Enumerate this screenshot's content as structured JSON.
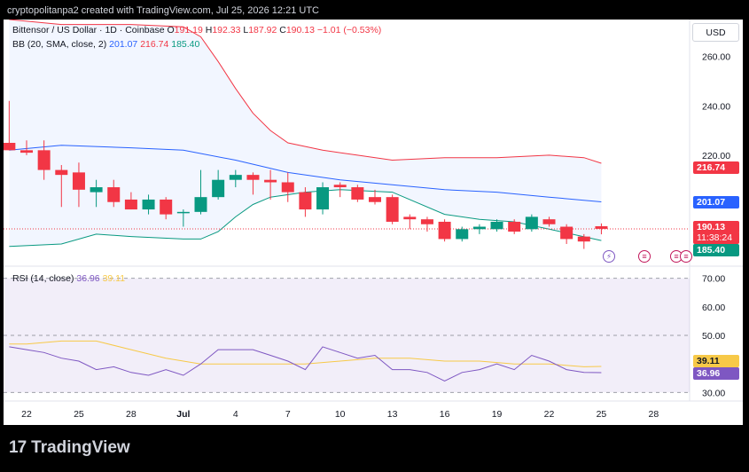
{
  "credit": "cryptopolitanpa2 created with TradingView.com, Jul 25, 2026 12:21 UTC",
  "footer": {
    "logo_mark": "17",
    "brand": "TradingView"
  },
  "header": {
    "symbol": "Bittensor / US Dollar · 1D · Coinbase",
    "o_label": "O",
    "o_value": "191.19",
    "h_label": "H",
    "h_value": "192.33",
    "l_label": "L",
    "l_value": "187.92",
    "c_label": "C",
    "c_value": "190.13",
    "change": "−1.01 (−0.53%)",
    "currency": "USD"
  },
  "bb_legend": {
    "label": "BB (20, SMA, close, 2)",
    "basis": "201.07",
    "upper": "216.74",
    "lower": "185.40"
  },
  "rsi_legend": {
    "label": "RSI (14, close)",
    "rsi": "36.96",
    "ma": "39.11"
  },
  "badges": {
    "upper": "216.74",
    "basis": "201.07",
    "price": "190.13",
    "countdown": "11:38:24",
    "lower": "185.40",
    "rsi_ma": "39.11",
    "rsi": "36.96"
  },
  "colors": {
    "up": "#089981",
    "down": "#f23645",
    "bb_basis": "#2962ff",
    "bb_upper": "#f23645",
    "bb_lower": "#089981",
    "rsi": "#7e57c2",
    "rsi_ma": "#f7c948"
  },
  "event_icons": [
    "lightning-icon",
    "us-flag-icon",
    "us-flag-icon",
    "us-flag-icon"
  ],
  "chart_data": [
    {
      "type": "candlestick",
      "y_axis_ticks": [
        "260.00",
        "240.00",
        "220.00"
      ],
      "ylim": [
        175,
        275
      ],
      "x_tick_labels": [
        "22",
        "25",
        "28",
        "Jul",
        "4",
        "7",
        "10",
        "13",
        "16",
        "19",
        "22",
        "25",
        "28"
      ],
      "x_ticks_day_index": [
        0,
        3,
        6,
        9,
        12,
        15,
        18,
        21,
        24,
        27,
        30,
        33,
        36
      ],
      "candles": [
        {
          "d": -1,
          "o": 225,
          "h": 242,
          "l": 222,
          "c": 222
        },
        {
          "d": 0,
          "o": 222,
          "h": 226,
          "l": 220,
          "c": 221
        },
        {
          "d": 1,
          "o": 222,
          "h": 226,
          "l": 210,
          "c": 214
        },
        {
          "d": 2,
          "o": 214,
          "h": 216,
          "l": 199,
          "c": 212
        },
        {
          "d": 3,
          "o": 213,
          "h": 217,
          "l": 199,
          "c": 206
        },
        {
          "d": 4,
          "o": 205,
          "h": 210,
          "l": 199,
          "c": 207
        },
        {
          "d": 5,
          "o": 207,
          "h": 210,
          "l": 199,
          "c": 201
        },
        {
          "d": 6,
          "o": 202,
          "h": 205,
          "l": 198,
          "c": 198
        },
        {
          "d": 7,
          "o": 198,
          "h": 204,
          "l": 196,
          "c": 202
        },
        {
          "d": 8,
          "o": 202,
          "h": 203,
          "l": 194,
          "c": 196
        },
        {
          "d": 9,
          "o": 197,
          "h": 198,
          "l": 191,
          "c": 197
        },
        {
          "d": 10,
          "o": 197,
          "h": 214,
          "l": 196,
          "c": 203
        },
        {
          "d": 11,
          "o": 203,
          "h": 214,
          "l": 202,
          "c": 210
        },
        {
          "d": 12,
          "o": 210,
          "h": 214,
          "l": 207,
          "c": 212
        },
        {
          "d": 13,
          "o": 212,
          "h": 213,
          "l": 204,
          "c": 210
        },
        {
          "d": 14,
          "o": 210,
          "h": 214,
          "l": 202,
          "c": 209
        },
        {
          "d": 15,
          "o": 209,
          "h": 213,
          "l": 201,
          "c": 205
        },
        {
          "d": 16,
          "o": 205,
          "h": 207,
          "l": 195,
          "c": 198
        },
        {
          "d": 17,
          "o": 198,
          "h": 209,
          "l": 196,
          "c": 207
        },
        {
          "d": 18,
          "o": 208,
          "h": 209,
          "l": 203,
          "c": 207
        },
        {
          "d": 19,
          "o": 207,
          "h": 208,
          "l": 201,
          "c": 202
        },
        {
          "d": 20,
          "o": 203,
          "h": 206,
          "l": 200,
          "c": 201
        },
        {
          "d": 21,
          "o": 203,
          "h": 204,
          "l": 192,
          "c": 193
        },
        {
          "d": 22,
          "o": 195,
          "h": 196,
          "l": 190,
          "c": 194
        },
        {
          "d": 23,
          "o": 194,
          "h": 195,
          "l": 189,
          "c": 192
        },
        {
          "d": 24,
          "o": 193,
          "h": 194,
          "l": 185,
          "c": 186
        },
        {
          "d": 25,
          "o": 186,
          "h": 191,
          "l": 185,
          "c": 190
        },
        {
          "d": 26,
          "o": 190,
          "h": 192,
          "l": 188,
          "c": 191
        },
        {
          "d": 27,
          "o": 190,
          "h": 194,
          "l": 189,
          "c": 193
        },
        {
          "d": 28,
          "o": 193,
          "h": 194,
          "l": 188,
          "c": 189
        },
        {
          "d": 29,
          "o": 190,
          "h": 196,
          "l": 189,
          "c": 195
        },
        {
          "d": 30,
          "o": 194,
          "h": 195,
          "l": 191,
          "c": 192
        },
        {
          "d": 31,
          "o": 191,
          "h": 192,
          "l": 184,
          "c": 186
        },
        {
          "d": 32,
          "o": 187,
          "h": 188,
          "l": 182,
          "c": 185
        },
        {
          "d": 33,
          "o": 191.19,
          "h": 192.33,
          "l": 187.92,
          "c": 190.13
        }
      ],
      "bb_basis": [
        [
          -1,
          222
        ],
        [
          2,
          224
        ],
        [
          6,
          223
        ],
        [
          9,
          222
        ],
        [
          12,
          218
        ],
        [
          15,
          213
        ],
        [
          18,
          210
        ],
        [
          21,
          208
        ],
        [
          24,
          206
        ],
        [
          27,
          205
        ],
        [
          30,
          203
        ],
        [
          33,
          201.07
        ]
      ],
      "bb_upper": [
        [
          -1,
          275
        ],
        [
          2,
          273
        ],
        [
          6,
          273
        ],
        [
          9,
          272
        ],
        [
          10,
          268
        ],
        [
          11,
          258
        ],
        [
          12,
          247
        ],
        [
          13,
          237
        ],
        [
          14,
          230
        ],
        [
          15,
          225
        ],
        [
          17,
          222
        ],
        [
          19,
          220
        ],
        [
          21,
          218
        ],
        [
          24,
          219
        ],
        [
          27,
          219
        ],
        [
          30,
          220
        ],
        [
          32,
          219
        ],
        [
          33,
          216.74
        ]
      ],
      "bb_lower": [
        [
          -1,
          183
        ],
        [
          2,
          184
        ],
        [
          4,
          188
        ],
        [
          6,
          187
        ],
        [
          9,
          186
        ],
        [
          10,
          186
        ],
        [
          11,
          189
        ],
        [
          12,
          195
        ],
        [
          13,
          200
        ],
        [
          14,
          203
        ],
        [
          16,
          205
        ],
        [
          18,
          206
        ],
        [
          21,
          205
        ],
        [
          24,
          196
        ],
        [
          26,
          194
        ],
        [
          28,
          193
        ],
        [
          30,
          190
        ],
        [
          33,
          185.4
        ]
      ],
      "current_price": 190.13
    },
    {
      "type": "line",
      "title": "RSI (14, close)",
      "y_axis_ticks": [
        "70.00",
        "60.00",
        "50.00",
        "30.00"
      ],
      "ylim": [
        27,
        73
      ],
      "bands": [
        30,
        50,
        70
      ],
      "series": [
        {
          "name": "RSI",
          "points": [
            [
              -1,
              46
            ],
            [
              0,
              45
            ],
            [
              1,
              44
            ],
            [
              2,
              42
            ],
            [
              3,
              41
            ],
            [
              4,
              38
            ],
            [
              5,
              39
            ],
            [
              6,
              37
            ],
            [
              7,
              36
            ],
            [
              8,
              38
            ],
            [
              9,
              36
            ],
            [
              10,
              40
            ],
            [
              11,
              45
            ],
            [
              12,
              45
            ],
            [
              13,
              45
            ],
            [
              14,
              43
            ],
            [
              15,
              41
            ],
            [
              16,
              38
            ],
            [
              17,
              46
            ],
            [
              18,
              44
            ],
            [
              19,
              42
            ],
            [
              20,
              43
            ],
            [
              21,
              38
            ],
            [
              22,
              38
            ],
            [
              23,
              37
            ],
            [
              24,
              34
            ],
            [
              25,
              37
            ],
            [
              26,
              38
            ],
            [
              27,
              40
            ],
            [
              28,
              38
            ],
            [
              29,
              43
            ],
            [
              30,
              41
            ],
            [
              31,
              38
            ],
            [
              32,
              37
            ],
            [
              33,
              36.96
            ]
          ]
        },
        {
          "name": "MA",
          "points": [
            [
              -1,
              47
            ],
            [
              0,
              47
            ],
            [
              2,
              48
            ],
            [
              4,
              48
            ],
            [
              6,
              45
            ],
            [
              8,
              42
            ],
            [
              10,
              40
            ],
            [
              12,
              40
            ],
            [
              14,
              40
            ],
            [
              16,
              40
            ],
            [
              18,
              41
            ],
            [
              20,
              42
            ],
            [
              22,
              42
            ],
            [
              24,
              41
            ],
            [
              26,
              41
            ],
            [
              28,
              40
            ],
            [
              30,
              40
            ],
            [
              32,
              39
            ],
            [
              33,
              39.11
            ]
          ]
        }
      ]
    }
  ]
}
